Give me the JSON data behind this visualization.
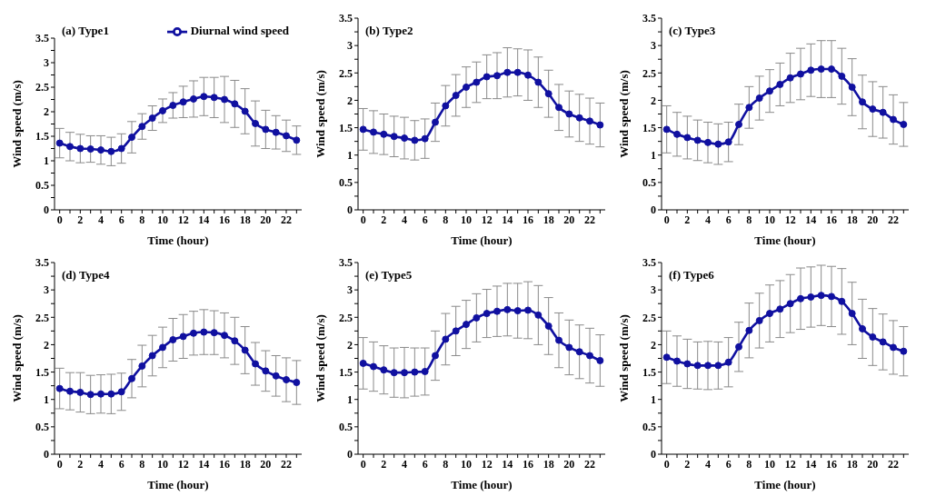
{
  "chart_data": [
    {
      "type": "line",
      "title": "(a) Type1",
      "xlabel": "Time (hour)",
      "ylabel": "Wind speed (m/s)",
      "legend": "top right",
      "marker": "circle",
      "line_style": "solid",
      "xlim": [
        -0.5,
        23.5
      ],
      "ylim": [
        0,
        3.5
      ],
      "xticks": [
        0,
        {
          "value": 1,
          "label": null
        },
        2,
        {
          "value": 3,
          "label": null
        },
        4,
        {
          "value": 5,
          "label": null
        },
        6,
        {
          "value": 7,
          "label": null
        },
        8,
        {
          "value": 9,
          "label": null
        },
        10,
        {
          "value": 11,
          "label": null
        },
        12,
        {
          "value": 13,
          "label": null
        },
        14,
        {
          "value": 15,
          "label": null
        },
        16,
        {
          "value": 17,
          "label": null
        },
        18,
        {
          "value": 19,
          "label": null
        },
        20,
        {
          "value": 21,
          "label": null
        },
        22,
        {
          "value": 23,
          "label": null
        }
      ],
      "yticks": [
        0,
        {
          "value": 0.25,
          "label": null
        },
        0.5,
        {
          "value": 0.75,
          "label": null
        },
        1,
        {
          "value": 1.25,
          "label": null
        },
        1.5,
        {
          "value": 1.75,
          "label": null
        },
        2,
        {
          "value": 2.25,
          "label": null
        },
        2.5,
        {
          "value": 2.75,
          "label": null
        },
        3,
        {
          "value": 3.25,
          "label": null
        },
        3.5
      ],
      "x": [
        0,
        1,
        2,
        3,
        4,
        5,
        6,
        7,
        8,
        9,
        10,
        11,
        12,
        13,
        14,
        15,
        16,
        17,
        18,
        19,
        20,
        21,
        22,
        23
      ],
      "series": [
        {
          "name": "Diurnal wind speed",
          "color": "#1010a0",
          "values": [
            1.36,
            1.29,
            1.25,
            1.24,
            1.22,
            1.19,
            1.25,
            1.48,
            1.7,
            1.87,
            2.02,
            2.13,
            2.2,
            2.26,
            2.31,
            2.29,
            2.25,
            2.16,
            2.01,
            1.76,
            1.64,
            1.58,
            1.51,
            1.42
          ],
          "errors": [
            0.3,
            0.29,
            0.29,
            0.27,
            0.29,
            0.29,
            0.3,
            0.32,
            0.26,
            0.25,
            0.24,
            0.26,
            0.32,
            0.37,
            0.39,
            0.41,
            0.47,
            0.48,
            0.46,
            0.46,
            0.39,
            0.34,
            0.32,
            0.29
          ]
        }
      ]
    },
    {
      "type": "line",
      "title": "(b) Type2",
      "xlabel": "Time (hour)",
      "ylabel": "Wind speed (m/s)",
      "marker": "circle",
      "line_style": "solid",
      "xlim": [
        -0.5,
        23.5
      ],
      "ylim": [
        0,
        3.5
      ],
      "xticks": [
        0,
        {
          "value": 1,
          "label": null
        },
        2,
        {
          "value": 3,
          "label": null
        },
        4,
        {
          "value": 5,
          "label": null
        },
        6,
        {
          "value": 7,
          "label": null
        },
        8,
        {
          "value": 9,
          "label": null
        },
        10,
        {
          "value": 11,
          "label": null
        },
        12,
        {
          "value": 13,
          "label": null
        },
        14,
        {
          "value": 15,
          "label": null
        },
        16,
        {
          "value": 17,
          "label": null
        },
        18,
        {
          "value": 19,
          "label": null
        },
        20,
        {
          "value": 21,
          "label": null
        },
        22,
        {
          "value": 23,
          "label": null
        }
      ],
      "yticks": [
        0,
        {
          "value": 0.25,
          "label": null
        },
        0.5,
        {
          "value": 0.75,
          "label": null
        },
        1,
        {
          "value": 1.25,
          "label": null
        },
        1.5,
        {
          "value": 1.75,
          "label": null
        },
        2,
        {
          "value": 2.25,
          "label": null
        },
        2.5,
        {
          "value": 2.75,
          "label": null
        },
        3,
        {
          "value": 3.25,
          "label": null
        },
        3.5
      ],
      "x": [
        0,
        1,
        2,
        3,
        4,
        5,
        6,
        7,
        8,
        9,
        10,
        11,
        12,
        13,
        14,
        15,
        16,
        17,
        18,
        19,
        20,
        21,
        22,
        23
      ],
      "series": [
        {
          "color": "#1010a0",
          "values": [
            1.47,
            1.42,
            1.38,
            1.34,
            1.31,
            1.27,
            1.3,
            1.6,
            1.9,
            2.09,
            2.24,
            2.33,
            2.43,
            2.45,
            2.51,
            2.51,
            2.46,
            2.33,
            2.12,
            1.87,
            1.75,
            1.68,
            1.62,
            1.55
          ],
          "errors": [
            0.38,
            0.39,
            0.37,
            0.37,
            0.38,
            0.36,
            0.36,
            0.35,
            0.37,
            0.38,
            0.37,
            0.37,
            0.4,
            0.42,
            0.45,
            0.43,
            0.46,
            0.46,
            0.43,
            0.42,
            0.42,
            0.43,
            0.42,
            0.4
          ]
        }
      ]
    },
    {
      "type": "line",
      "title": "(c) Type3",
      "xlabel": "Time (hour)",
      "ylabel": "Wind speed (m/s)",
      "marker": "circle",
      "line_style": "solid",
      "xlim": [
        -0.5,
        23.5
      ],
      "ylim": [
        0,
        3.5
      ],
      "xticks": [
        0,
        {
          "value": 1,
          "label": null
        },
        2,
        {
          "value": 3,
          "label": null
        },
        4,
        {
          "value": 5,
          "label": null
        },
        6,
        {
          "value": 7,
          "label": null
        },
        8,
        {
          "value": 9,
          "label": null
        },
        10,
        {
          "value": 11,
          "label": null
        },
        12,
        {
          "value": 13,
          "label": null
        },
        14,
        {
          "value": 15,
          "label": null
        },
        16,
        {
          "value": 17,
          "label": null
        },
        18,
        {
          "value": 19,
          "label": null
        },
        20,
        {
          "value": 21,
          "label": null
        },
        22,
        {
          "value": 23,
          "label": null
        }
      ],
      "yticks": [
        0,
        {
          "value": 0.25,
          "label": null
        },
        0.5,
        {
          "value": 0.75,
          "label": null
        },
        1,
        {
          "value": 1.25,
          "label": null
        },
        1.5,
        {
          "value": 1.75,
          "label": null
        },
        2,
        {
          "value": 2.25,
          "label": null
        },
        2.5,
        {
          "value": 2.75,
          "label": null
        },
        3,
        {
          "value": 3.25,
          "label": null
        },
        3.5
      ],
      "x": [
        0,
        1,
        2,
        3,
        4,
        5,
        6,
        7,
        8,
        9,
        10,
        11,
        12,
        13,
        14,
        15,
        16,
        17,
        18,
        19,
        20,
        21,
        22,
        23
      ],
      "series": [
        {
          "color": "#1010a0",
          "values": [
            1.47,
            1.38,
            1.32,
            1.27,
            1.23,
            1.2,
            1.24,
            1.56,
            1.87,
            2.04,
            2.17,
            2.29,
            2.41,
            2.48,
            2.55,
            2.57,
            2.57,
            2.44,
            2.24,
            1.97,
            1.84,
            1.78,
            1.65,
            1.56
          ],
          "errors": [
            0.43,
            0.4,
            0.39,
            0.37,
            0.37,
            0.37,
            0.36,
            0.37,
            0.38,
            0.4,
            0.39,
            0.39,
            0.45,
            0.47,
            0.48,
            0.52,
            0.52,
            0.51,
            0.52,
            0.49,
            0.5,
            0.47,
            0.45,
            0.4
          ]
        }
      ]
    },
    {
      "type": "line",
      "title": "(d) Type4",
      "xlabel": "Time (hour)",
      "ylabel": "Wind speed (m/s)",
      "marker": "circle",
      "line_style": "solid",
      "xlim": [
        -0.5,
        23.5
      ],
      "ylim": [
        0,
        3.5
      ],
      "xticks": [
        0,
        {
          "value": 1,
          "label": null
        },
        2,
        {
          "value": 3,
          "label": null
        },
        4,
        {
          "value": 5,
          "label": null
        },
        6,
        {
          "value": 7,
          "label": null
        },
        8,
        {
          "value": 9,
          "label": null
        },
        10,
        {
          "value": 11,
          "label": null
        },
        12,
        {
          "value": 13,
          "label": null
        },
        14,
        {
          "value": 15,
          "label": null
        },
        16,
        {
          "value": 17,
          "label": null
        },
        18,
        {
          "value": 19,
          "label": null
        },
        20,
        {
          "value": 21,
          "label": null
        },
        22,
        {
          "value": 23,
          "label": null
        }
      ],
      "yticks": [
        0,
        {
          "value": 0.25,
          "label": null
        },
        0.5,
        {
          "value": 0.75,
          "label": null
        },
        1,
        {
          "value": 1.25,
          "label": null
        },
        1.5,
        {
          "value": 1.75,
          "label": null
        },
        2,
        {
          "value": 2.25,
          "label": null
        },
        2.5,
        {
          "value": 2.75,
          "label": null
        },
        3,
        {
          "value": 3.25,
          "label": null
        },
        3.5
      ],
      "x": [
        0,
        1,
        2,
        3,
        4,
        5,
        6,
        7,
        8,
        9,
        10,
        11,
        12,
        13,
        14,
        15,
        16,
        17,
        18,
        19,
        20,
        21,
        22,
        23
      ],
      "series": [
        {
          "color": "#1010a0",
          "values": [
            1.2,
            1.15,
            1.13,
            1.09,
            1.1,
            1.1,
            1.14,
            1.38,
            1.61,
            1.8,
            1.95,
            2.09,
            2.15,
            2.21,
            2.23,
            2.22,
            2.17,
            2.07,
            1.9,
            1.65,
            1.52,
            1.43,
            1.36,
            1.31
          ],
          "errors": [
            0.37,
            0.34,
            0.36,
            0.35,
            0.35,
            0.36,
            0.34,
            0.35,
            0.38,
            0.37,
            0.37,
            0.39,
            0.4,
            0.4,
            0.41,
            0.4,
            0.41,
            0.43,
            0.43,
            0.39,
            0.37,
            0.37,
            0.4,
            0.4
          ]
        }
      ]
    },
    {
      "type": "line",
      "title": "(e) Type5",
      "xlabel": "Time (hour)",
      "ylabel": "Wind speed (m/s)",
      "marker": "circle",
      "line_style": "solid",
      "xlim": [
        -0.5,
        23.5
      ],
      "ylim": [
        0,
        3.5
      ],
      "xticks": [
        0,
        {
          "value": 1,
          "label": null
        },
        2,
        {
          "value": 3,
          "label": null
        },
        4,
        {
          "value": 5,
          "label": null
        },
        6,
        {
          "value": 7,
          "label": null
        },
        8,
        {
          "value": 9,
          "label": null
        },
        10,
        {
          "value": 11,
          "label": null
        },
        12,
        {
          "value": 13,
          "label": null
        },
        14,
        {
          "value": 15,
          "label": null
        },
        16,
        {
          "value": 17,
          "label": null
        },
        18,
        {
          "value": 19,
          "label": null
        },
        20,
        {
          "value": 21,
          "label": null
        },
        22,
        {
          "value": 23,
          "label": null
        }
      ],
      "yticks": [
        0,
        {
          "value": 0.25,
          "label": null
        },
        0.5,
        {
          "value": 0.75,
          "label": null
        },
        1,
        {
          "value": 1.25,
          "label": null
        },
        1.5,
        {
          "value": 1.75,
          "label": null
        },
        2,
        {
          "value": 2.25,
          "label": null
        },
        2.5,
        {
          "value": 2.75,
          "label": null
        },
        3,
        {
          "value": 3.25,
          "label": null
        },
        3.5
      ],
      "x": [
        0,
        1,
        2,
        3,
        4,
        5,
        6,
        7,
        8,
        9,
        10,
        11,
        12,
        13,
        14,
        15,
        16,
        17,
        18,
        19,
        20,
        21,
        22,
        23
      ],
      "series": [
        {
          "color": "#1010a0",
          "values": [
            1.66,
            1.6,
            1.54,
            1.49,
            1.49,
            1.5,
            1.51,
            1.8,
            2.1,
            2.25,
            2.37,
            2.49,
            2.57,
            2.61,
            2.64,
            2.62,
            2.63,
            2.54,
            2.34,
            2.08,
            1.95,
            1.87,
            1.8,
            1.71
          ],
          "errors": [
            0.47,
            0.45,
            0.44,
            0.45,
            0.46,
            0.44,
            0.43,
            0.45,
            0.47,
            0.45,
            0.44,
            0.44,
            0.44,
            0.46,
            0.48,
            0.5,
            0.52,
            0.54,
            0.52,
            0.5,
            0.5,
            0.49,
            0.5,
            0.47
          ]
        }
      ]
    },
    {
      "type": "line",
      "title": "(f) Type6",
      "xlabel": "Time (hour)",
      "ylabel": "Wind speed (m/s)",
      "marker": "circle",
      "line_style": "solid",
      "xlim": [
        -0.5,
        23.5
      ],
      "ylim": [
        0,
        3.5
      ],
      "xticks": [
        0,
        {
          "value": 1,
          "label": null
        },
        2,
        {
          "value": 3,
          "label": null
        },
        4,
        {
          "value": 5,
          "label": null
        },
        6,
        {
          "value": 7,
          "label": null
        },
        8,
        {
          "value": 9,
          "label": null
        },
        10,
        {
          "value": 11,
          "label": null
        },
        12,
        {
          "value": 13,
          "label": null
        },
        14,
        {
          "value": 15,
          "label": null
        },
        16,
        {
          "value": 17,
          "label": null
        },
        18,
        {
          "value": 19,
          "label": null
        },
        20,
        {
          "value": 21,
          "label": null
        },
        22,
        {
          "value": 23,
          "label": null
        }
      ],
      "yticks": [
        0,
        {
          "value": 0.25,
          "label": null
        },
        0.5,
        {
          "value": 0.75,
          "label": null
        },
        1,
        {
          "value": 1.25,
          "label": null
        },
        1.5,
        {
          "value": 1.75,
          "label": null
        },
        2,
        {
          "value": 2.25,
          "label": null
        },
        2.5,
        {
          "value": 2.75,
          "label": null
        },
        3,
        {
          "value": 3.25,
          "label": null
        },
        3.5
      ],
      "x": [
        0,
        1,
        2,
        3,
        4,
        5,
        6,
        7,
        8,
        9,
        10,
        11,
        12,
        13,
        14,
        15,
        16,
        17,
        18,
        19,
        20,
        21,
        22,
        23
      ],
      "series": [
        {
          "color": "#1010a0",
          "values": [
            1.77,
            1.7,
            1.65,
            1.62,
            1.62,
            1.62,
            1.68,
            1.96,
            2.26,
            2.44,
            2.57,
            2.65,
            2.75,
            2.84,
            2.87,
            2.9,
            2.88,
            2.79,
            2.57,
            2.29,
            2.14,
            2.05,
            1.95,
            1.88
          ],
          "errors": [
            0.48,
            0.46,
            0.45,
            0.43,
            0.44,
            0.43,
            0.45,
            0.45,
            0.5,
            0.5,
            0.52,
            0.52,
            0.53,
            0.56,
            0.55,
            0.55,
            0.55,
            0.6,
            0.57,
            0.54,
            0.52,
            0.51,
            0.49,
            0.45
          ]
        }
      ]
    }
  ]
}
